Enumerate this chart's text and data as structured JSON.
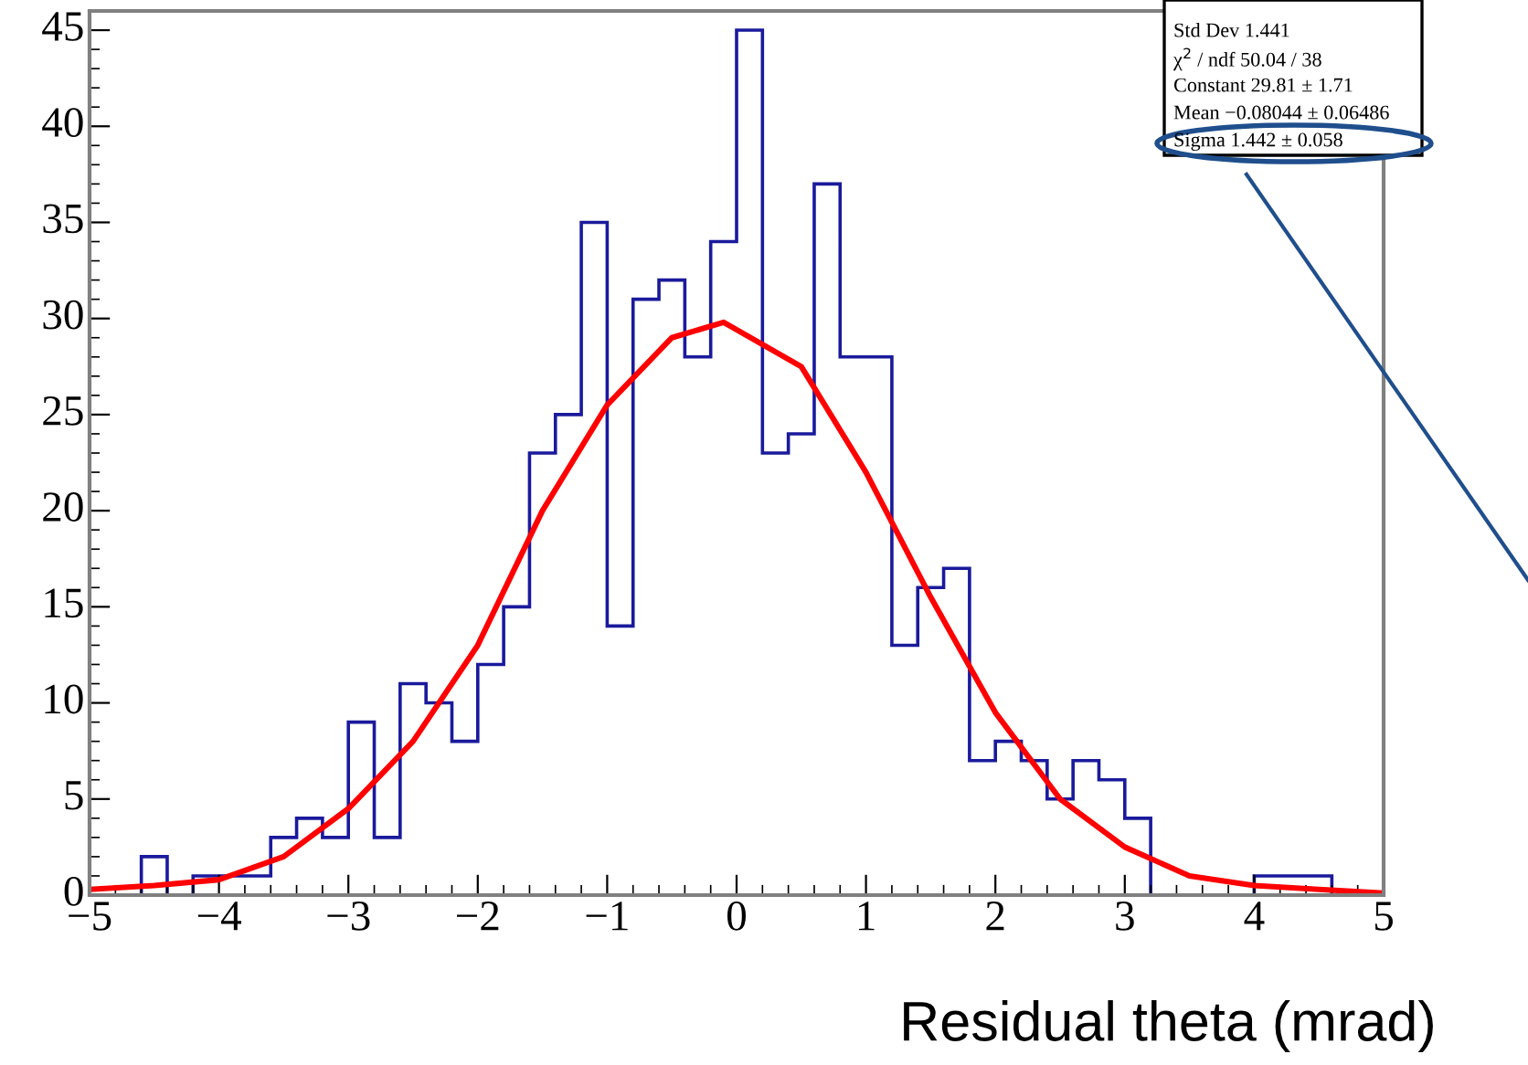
{
  "chart_data": {
    "type": "histogram",
    "xlabel": "Residual theta (mrad)",
    "bins": [
      -5.0,
      -4.8,
      -4.6,
      -4.4,
      -4.2,
      -4.0,
      -3.8,
      -3.6,
      -3.4,
      -3.2,
      -3.0,
      -2.8,
      -2.6,
      -2.4,
      -2.2,
      -2.0,
      -1.8,
      -1.6,
      -1.4,
      -1.2,
      -1.0,
      -0.8,
      -0.6,
      -0.4,
      -0.2,
      0.0,
      0.2,
      0.4,
      0.6,
      0.8,
      1.0,
      1.2,
      1.4,
      1.6,
      1.8,
      2.0,
      2.2,
      2.4,
      2.6,
      2.8,
      3.0,
      3.2,
      3.4,
      3.6,
      3.8,
      4.0,
      4.2,
      4.4,
      4.6,
      4.8,
      5.0
    ],
    "series": [
      {
        "color": "#1a1a9c",
        "values": [
          0,
          0,
          2,
          0,
          1,
          1,
          1,
          3,
          4,
          3,
          9,
          3,
          11,
          10,
          8,
          12,
          15,
          23,
          25,
          35,
          14,
          31,
          32,
          28,
          34,
          45,
          23,
          24,
          37,
          28,
          28,
          13,
          16,
          17,
          7,
          8,
          7,
          5,
          7,
          6,
          4,
          0,
          0,
          0,
          0,
          1,
          1,
          1,
          0,
          0
        ]
      },
      {
        "type": "line",
        "color": "#ff0000",
        "x": [
          -5,
          -4.5,
          -4,
          -3.5,
          -3,
          -2.5,
          -2,
          -1.5,
          -1,
          -0.5,
          -0.1,
          0.5,
          1,
          1.5,
          2,
          2.5,
          3,
          3.5,
          4,
          4.5,
          5
        ],
        "values": [
          0.3,
          0.5,
          0.8,
          2,
          4.5,
          8,
          13,
          20,
          25.5,
          29,
          29.8,
          27.5,
          22,
          15.5,
          9.5,
          5,
          2.5,
          1,
          0.5,
          0.3,
          0.1
        ]
      }
    ],
    "xlim": [
      -5,
      5
    ],
    "xticks": [
      -5,
      -4,
      -3,
      -2,
      -1,
      0,
      1,
      2,
      3,
      4,
      5
    ],
    "ylim": [
      0,
      46
    ],
    "yticks": [
      0,
      5,
      10,
      15,
      20,
      25,
      30,
      35,
      40,
      45
    ],
    "annotations": [
      "Std Dev 1.441",
      "χ$^{2}$ / ndf 50.04 / 38",
      "Constant 29.81 ± 1.71",
      "Mean −0.08044 ± 0.06486",
      "Sigma 1.442 ± 0.058"
    ]
  }
}
